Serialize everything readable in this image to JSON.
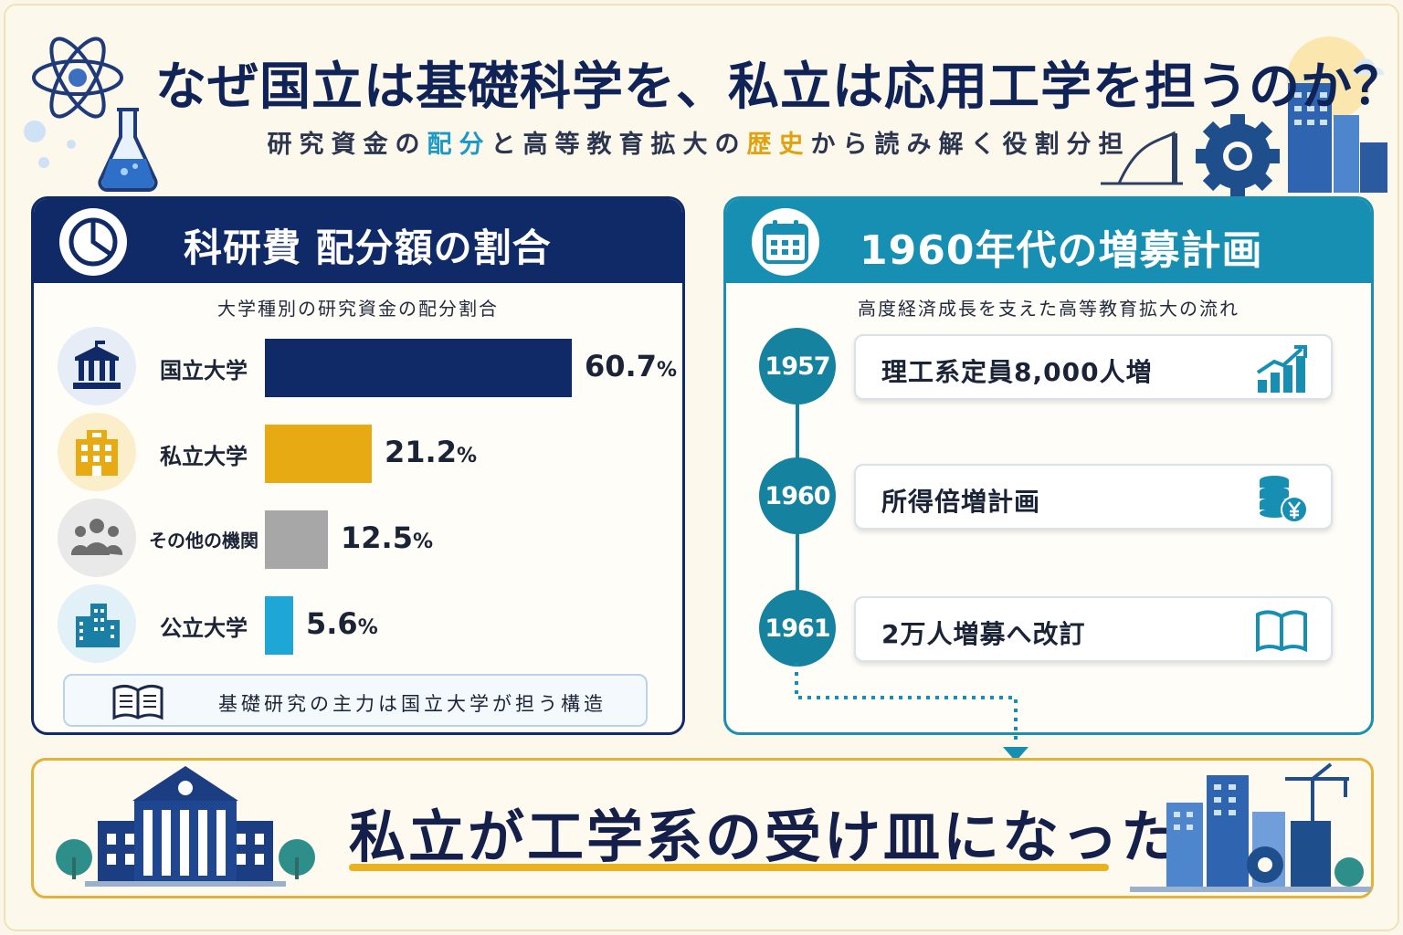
{
  "header": {
    "title": "なぜ国立は基礎科学を、私立は応用工学を担うのか？",
    "subtitle_parts": [
      "研究資金の",
      "配分",
      "と高等教育拡大の",
      "歴史",
      "から読み解く役割分担"
    ]
  },
  "left_panel": {
    "title": "科研費 配分額の割合",
    "subtitle": "大学種別の研究資金の配分割合",
    "note": "基礎研究の主力は国立大学が担う構造",
    "icon": "pie-chart-icon"
  },
  "chart_data": {
    "type": "bar",
    "orientation": "horizontal",
    "title": "大学種別の研究資金の配分割合",
    "categories": [
      "国立大学",
      "私立大学",
      "その他の機関",
      "公立大学"
    ],
    "values": [
      60.7,
      21.2,
      12.5,
      5.6
    ],
    "unit": "%",
    "value_labels": [
      "60.7",
      "21.2",
      "12.5",
      "5.6"
    ],
    "colors": [
      "#102a68",
      "#e8aa12",
      "#a7a7a7",
      "#1ea6d6"
    ],
    "icons": [
      "government-building-icon",
      "office-building-icon",
      "people-group-icon",
      "city-building-icon"
    ],
    "grid": false,
    "legend": "none"
  },
  "right_panel": {
    "title": "1960年代の増募計画",
    "subtitle": "高度経済成長を支えた高等教育拡大の流れ",
    "icon": "calendar-icon",
    "timeline": [
      {
        "year": "1957",
        "text": "理工系定員8,000人増",
        "icon": "growth-chart-icon"
      },
      {
        "year": "1960",
        "text": "所得倍増計画",
        "icon": "coin-stack-yen-icon"
      },
      {
        "year": "1961",
        "text": "2万人増募へ改訂",
        "icon": "open-book-icon"
      }
    ]
  },
  "banner": {
    "text": "私立が工学系の受け皿になった"
  }
}
